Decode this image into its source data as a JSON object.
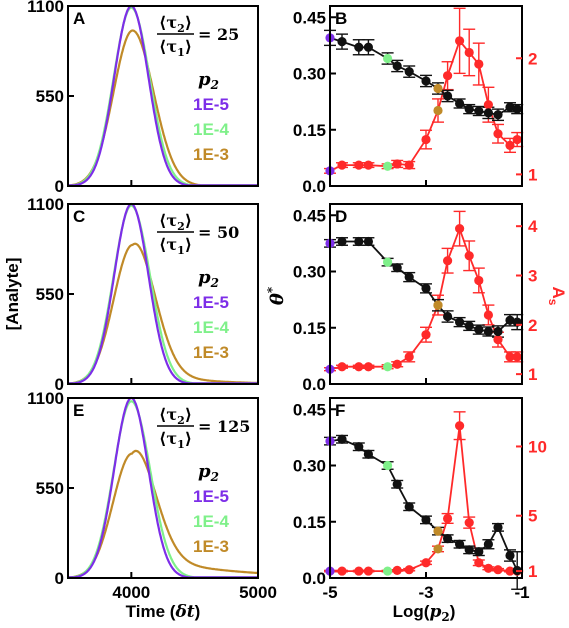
{
  "colors": {
    "p2_1e5": "#7d2ee8",
    "p2_1e4": "#7ff08a",
    "p2_1e3": "#c08a28",
    "theta": "#111111",
    "As": "#ff2a2a"
  },
  "labels": {
    "left_xlabel_main": "Time (",
    "left_xlabel_sym": "δt",
    "left_xlabel_end": ")",
    "left_ylabel": "[Analyte]",
    "right_xlabel_main": "Log(",
    "right_xlabel_sym": "p",
    "right_xlabel_sub": "2",
    "right_xlabel_end": ")",
    "theta_label": "θ",
    "theta_sup": "*",
    "As_label": "A",
    "As_sub": "s",
    "legend_title": "p",
    "legend_title_sub": "2",
    "ratio_num": "⟨τ",
    "ratio_num_sub": "2",
    "ratio_num_end": "⟩",
    "ratio_den": "⟨τ",
    "ratio_den_sub": "1",
    "ratio_den_end": "⟩"
  },
  "chart_data": [
    {
      "panel": "A",
      "type": "line",
      "ratio_value": "= 25",
      "x_ticks": [
        "4000",
        "5000"
      ],
      "y_ticks": [
        "0",
        "550",
        "1100"
      ],
      "xlim": [
        3500,
        5000
      ],
      "ylim": [
        0,
        1100
      ],
      "legend_title": "p2",
      "series": [
        {
          "name": "1E-5",
          "peak_x": 4000,
          "peak_y": 1100,
          "sigma_left": 135,
          "sigma_right": 135,
          "tail_amp": 0,
          "tail_decay": 1
        },
        {
          "name": "1E-4",
          "peak_x": 4000,
          "peak_y": 1090,
          "sigma_left": 140,
          "sigma_right": 145,
          "tail_amp": 0,
          "tail_decay": 1
        },
        {
          "name": "1E-3",
          "peak_x": 4010,
          "peak_y": 950,
          "sigma_left": 150,
          "sigma_right": 165,
          "tail_amp": 0,
          "tail_decay": 1
        }
      ]
    },
    {
      "panel": "C",
      "type": "line",
      "ratio_value": "= 50",
      "x_ticks": [
        "4000",
        "5000"
      ],
      "y_ticks": [
        "0",
        "550",
        "1100"
      ],
      "xlim": [
        3500,
        5000
      ],
      "ylim": [
        0,
        1100
      ],
      "legend_title": "p2",
      "series": [
        {
          "name": "1E-5",
          "peak_x": 4000,
          "peak_y": 1100,
          "sigma_left": 135,
          "sigma_right": 135,
          "tail_amp": 0,
          "tail_decay": 1
        },
        {
          "name": "1E-4",
          "peak_x": 4000,
          "peak_y": 1090,
          "sigma_left": 140,
          "sigma_right": 148,
          "tail_amp": 0,
          "tail_decay": 1
        },
        {
          "name": "1E-3",
          "peak_x": 4010,
          "peak_y": 850,
          "sigma_left": 150,
          "sigma_right": 170,
          "tail_amp": 110,
          "tail_decay": 350
        }
      ]
    },
    {
      "panel": "E",
      "type": "line",
      "ratio_value": "= 125",
      "x_ticks": [
        "4000",
        "5000"
      ],
      "y_ticks": [
        "0",
        "550",
        "1100"
      ],
      "xlim": [
        3500,
        5000
      ],
      "ylim": [
        0,
        1100
      ],
      "legend_title": "p2",
      "series": [
        {
          "name": "1E-5",
          "peak_x": 4000,
          "peak_y": 1100,
          "sigma_left": 135,
          "sigma_right": 135,
          "tail_amp": 0,
          "tail_decay": 1
        },
        {
          "name": "1E-4",
          "peak_x": 4000,
          "peak_y": 1080,
          "sigma_left": 140,
          "sigma_right": 150,
          "tail_amp": 0,
          "tail_decay": 1
        },
        {
          "name": "1E-3",
          "peak_x": 4005,
          "peak_y": 760,
          "sigma_left": 150,
          "sigma_right": 175,
          "tail_amp": 160,
          "tail_decay": 600
        }
      ]
    },
    {
      "panel": "B",
      "type": "line",
      "x_ticks": [
        "-5",
        "-3",
        "-1"
      ],
      "xlim": [
        -5,
        -1
      ],
      "y_left_ticks": [
        "0.0",
        "0.15",
        "0.30",
        "0.45"
      ],
      "ylim_left": [
        0,
        0.48
      ],
      "y_right_ticks": [
        "1",
        "2"
      ],
      "ylim_right": [
        0.9,
        2.45
      ],
      "theta": {
        "x": [
          -5,
          -4.75,
          -4.4,
          -4.2,
          -3.8,
          -3.6,
          -3.35,
          -3.0,
          -2.75,
          -2.55,
          -2.3,
          -2.1,
          -1.9,
          -1.7,
          -1.5,
          -1.25,
          -1.1
        ],
        "y": [
          0.395,
          0.385,
          0.37,
          0.37,
          0.34,
          0.32,
          0.305,
          0.28,
          0.26,
          0.24,
          0.22,
          0.205,
          0.2,
          0.195,
          0.19,
          0.21,
          0.205
        ],
        "err": [
          0.02,
          0.02,
          0.02,
          0.02,
          0.015,
          0.015,
          0.015,
          0.015,
          0.015,
          0.015,
          0.012,
          0.012,
          0.012,
          0.015,
          0.015,
          0.012,
          0.012
        ]
      },
      "As": {
        "x": [
          -5,
          -4.75,
          -4.4,
          -4.2,
          -3.8,
          -3.6,
          -3.35,
          -3.0,
          -2.75,
          -2.55,
          -2.3,
          -2.1,
          -1.9,
          -1.7,
          -1.5,
          -1.25,
          -1.1
        ],
        "y": [
          1.03,
          1.08,
          1.08,
          1.08,
          1.07,
          1.09,
          1.08,
          1.3,
          1.55,
          1.85,
          2.15,
          2.05,
          1.95,
          1.6,
          1.35,
          1.25,
          1.3
        ],
        "err": [
          0.02,
          0.02,
          0.02,
          0.02,
          0.02,
          0.03,
          0.03,
          0.08,
          0.1,
          0.12,
          0.28,
          0.2,
          0.18,
          0.15,
          0.08,
          0.06,
          0.06
        ]
      },
      "marker_colors_theta": [
        "p2_1e5",
        "theta",
        "theta",
        "theta",
        "p2_1e4",
        "theta",
        "theta",
        "theta",
        "p2_1e3",
        "theta",
        "theta",
        "theta",
        "theta",
        "theta",
        "theta",
        "theta",
        "theta"
      ],
      "marker_colors_As": [
        "p2_1e5",
        "As",
        "As",
        "As",
        "p2_1e4",
        "As",
        "As",
        "As",
        "p2_1e3",
        "As",
        "As",
        "As",
        "As",
        "As",
        "As",
        "As",
        "As"
      ]
    },
    {
      "panel": "D",
      "type": "line",
      "x_ticks": [
        "-5",
        "-3",
        "-1"
      ],
      "xlim": [
        -5,
        -1
      ],
      "y_left_ticks": [
        "0.0",
        "0.15",
        "0.30",
        "0.45"
      ],
      "ylim_left": [
        0,
        0.48
      ],
      "y_right_ticks": [
        "1",
        "2",
        "3",
        "4"
      ],
      "ylim_right": [
        0.8,
        4.45
      ],
      "theta": {
        "x": [
          -5,
          -4.75,
          -4.4,
          -4.2,
          -3.8,
          -3.6,
          -3.35,
          -3.0,
          -2.75,
          -2.55,
          -2.3,
          -2.1,
          -1.9,
          -1.7,
          -1.5,
          -1.25,
          -1.1
        ],
        "y": [
          0.375,
          0.38,
          0.38,
          0.38,
          0.325,
          0.31,
          0.285,
          0.255,
          0.21,
          0.18,
          0.165,
          0.155,
          0.145,
          0.14,
          0.14,
          0.17,
          0.165
        ],
        "err": [
          0.01,
          0.01,
          0.01,
          0.01,
          0.01,
          0.01,
          0.012,
          0.012,
          0.015,
          0.015,
          0.012,
          0.012,
          0.012,
          0.012,
          0.015,
          0.015,
          0.02
        ]
      },
      "As": {
        "x": [
          -5,
          -4.75,
          -4.4,
          -4.2,
          -3.8,
          -3.6,
          -3.35,
          -3.0,
          -2.75,
          -2.55,
          -2.3,
          -2.1,
          -1.9,
          -1.7,
          -1.5,
          -1.25,
          -1.1
        ],
        "y": [
          1.1,
          1.15,
          1.15,
          1.15,
          1.15,
          1.2,
          1.35,
          1.8,
          2.4,
          3.3,
          3.95,
          3.4,
          2.9,
          2.2,
          1.7,
          1.35,
          1.35
        ],
        "err": [
          0.03,
          0.03,
          0.03,
          0.03,
          0.04,
          0.05,
          0.1,
          0.15,
          0.2,
          0.25,
          0.35,
          0.3,
          0.25,
          0.2,
          0.15,
          0.1,
          0.1
        ]
      },
      "marker_colors_theta": [
        "p2_1e5",
        "theta",
        "theta",
        "theta",
        "p2_1e4",
        "theta",
        "theta",
        "theta",
        "p2_1e3",
        "theta",
        "theta",
        "theta",
        "theta",
        "theta",
        "theta",
        "theta",
        "theta"
      ],
      "marker_colors_As": [
        "p2_1e5",
        "As",
        "As",
        "As",
        "p2_1e4",
        "As",
        "As",
        "As",
        "p2_1e3",
        "As",
        "As",
        "As",
        "As",
        "As",
        "As",
        "As",
        "As"
      ]
    },
    {
      "panel": "F",
      "type": "line",
      "x_ticks": [
        "-5",
        "-3",
        "-1"
      ],
      "xlim": [
        -5,
        -1
      ],
      "y_left_ticks": [
        "0.0",
        "0.15",
        "0.30",
        "0.45"
      ],
      "ylim_left": [
        0,
        0.48
      ],
      "y_right_ticks": [
        "1",
        "5",
        "10"
      ],
      "ylim_right": [
        0.5,
        13.5
      ],
      "theta": {
        "x": [
          -5,
          -4.75,
          -4.4,
          -4.2,
          -3.8,
          -3.6,
          -3.35,
          -3.0,
          -2.75,
          -2.55,
          -2.3,
          -2.1,
          -1.9,
          -1.7,
          -1.5,
          -1.25,
          -1.1
        ],
        "y": [
          0.365,
          0.37,
          0.35,
          0.33,
          0.3,
          0.25,
          0.19,
          0.155,
          0.125,
          0.105,
          0.09,
          0.075,
          0.07,
          0.09,
          0.135,
          0.06,
          0.02
        ],
        "err": [
          0.01,
          0.01,
          0.01,
          0.01,
          0.01,
          0.01,
          0.01,
          0.01,
          0.01,
          0.01,
          0.01,
          0.01,
          0.01,
          0.012,
          0.01,
          0.015,
          0.05
        ]
      },
      "As": {
        "x": [
          -5,
          -4.75,
          -4.4,
          -4.2,
          -3.8,
          -3.6,
          -3.35,
          -3.0,
          -2.75,
          -2.55,
          -2.3,
          -2.1,
          -1.9,
          -1.7,
          -1.5,
          -1.25,
          -1.1
        ],
        "y": [
          1.0,
          1.0,
          1.0,
          1.0,
          1.0,
          1.05,
          1.1,
          1.6,
          2.6,
          4.8,
          11.5,
          4.5,
          1.6,
          1.2,
          1.1,
          1.0,
          1.0
        ],
        "err": [
          0.05,
          0.05,
          0.05,
          0.05,
          0.05,
          0.05,
          0.08,
          0.12,
          0.2,
          0.35,
          1.0,
          0.4,
          0.2,
          0.1,
          0.08,
          0.05,
          0.05
        ]
      },
      "marker_colors_theta": [
        "p2_1e5",
        "theta",
        "theta",
        "theta",
        "p2_1e4",
        "theta",
        "theta",
        "theta",
        "p2_1e3",
        "theta",
        "theta",
        "theta",
        "theta",
        "theta",
        "theta",
        "theta",
        "theta"
      ],
      "marker_colors_As": [
        "p2_1e5",
        "As",
        "As",
        "As",
        "p2_1e4",
        "As",
        "As",
        "As",
        "p2_1e3",
        "As",
        "As",
        "As",
        "As",
        "As",
        "As",
        "As",
        "As"
      ]
    }
  ]
}
